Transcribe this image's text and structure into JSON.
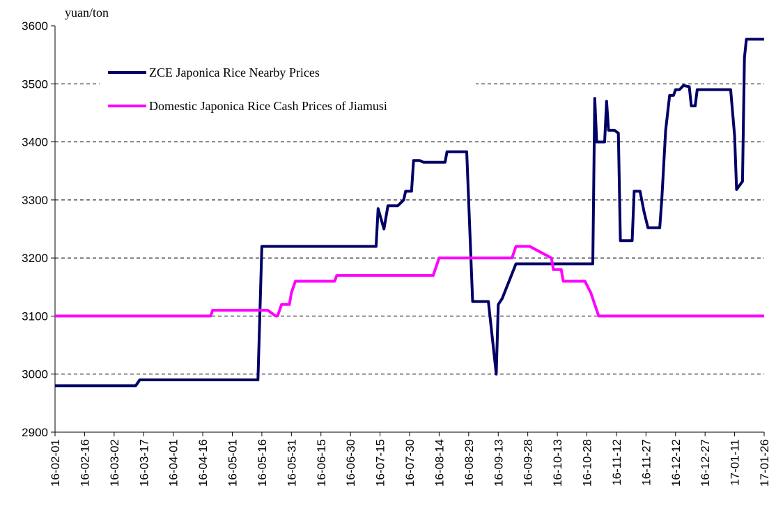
{
  "chart_data": {
    "type": "line",
    "y_label": "yuan/ton",
    "ylim": [
      2900,
      3600
    ],
    "yticks": [
      2900,
      3000,
      3100,
      3200,
      3300,
      3400,
      3500,
      3600
    ],
    "xlim": [
      "16-02-01",
      "17-01-26"
    ],
    "xticks": [
      "16-02-01",
      "16-02-16",
      "16-03-02",
      "16-03-17",
      "16-04-01",
      "16-04-16",
      "16-05-01",
      "16-05-16",
      "16-05-31",
      "16-06-15",
      "16-06-30",
      "16-07-15",
      "16-07-30",
      "16-08-14",
      "16-08-29",
      "16-09-13",
      "16-09-28",
      "16-10-13",
      "16-10-28",
      "16-11-12",
      "16-11-27",
      "16-12-12",
      "16-12-27",
      "17-01-11",
      "17-01-26"
    ],
    "grid": true,
    "legend": "upper left",
    "series": [
      {
        "name": "ZCE Japonica Rice Nearby Prices",
        "color": "#000066",
        "x": [
          "16-02-01",
          "16-03-13",
          "16-03-15",
          "16-05-14",
          "16-05-16",
          "16-07-13",
          "16-07-14",
          "16-07-17",
          "16-07-19",
          "16-07-24",
          "16-07-27",
          "16-07-28",
          "16-07-31",
          "16-08-01",
          "16-08-04",
          "16-08-06",
          "16-08-17",
          "16-08-18",
          "16-08-28",
          "16-08-31",
          "16-09-08",
          "16-09-12",
          "16-09-13",
          "16-09-15",
          "16-09-22",
          "16-10-31",
          "16-11-01",
          "16-11-02",
          "16-11-06",
          "16-11-07",
          "16-11-08",
          "16-11-11",
          "16-11-13",
          "16-11-14",
          "16-11-20",
          "16-11-21",
          "16-11-24",
          "16-11-26",
          "16-11-28",
          "16-12-04",
          "16-12-05",
          "16-12-07",
          "16-12-09",
          "16-12-11",
          "16-12-12",
          "16-12-14",
          "16-12-16",
          "16-12-19",
          "16-12-20",
          "16-12-22",
          "16-12-23",
          "17-01-09",
          "17-01-11",
          "17-01-12",
          "17-01-15",
          "17-01-16",
          "17-01-17",
          "17-01-26"
        ],
        "values": [
          2980,
          2980,
          2990,
          2990,
          3220,
          3220,
          3285,
          3250,
          3290,
          3290,
          3300,
          3315,
          3315,
          3368,
          3368,
          3365,
          3365,
          3383,
          3383,
          3125,
          3125,
          3000,
          3120,
          3130,
          3190,
          3190,
          3475,
          3400,
          3400,
          3470,
          3420,
          3420,
          3415,
          3230,
          3230,
          3315,
          3315,
          3280,
          3252,
          3252,
          3300,
          3420,
          3480,
          3480,
          3490,
          3490,
          3497,
          3495,
          3462,
          3462,
          3490,
          3490,
          3410,
          3318,
          3332,
          3545,
          3577,
          3577
        ]
      },
      {
        "name": "Domestic Japonica Rice Cash Prices of Jiamusi",
        "color": "#ff00ff",
        "x": [
          "16-02-01",
          "16-04-20",
          "16-04-21",
          "16-05-19",
          "16-05-23",
          "16-05-24",
          "16-05-26",
          "16-05-30",
          "16-05-31",
          "16-06-02",
          "16-06-22",
          "16-06-23",
          "16-08-11",
          "16-08-14",
          "16-09-20",
          "16-09-22",
          "16-09-29",
          "16-10-10",
          "16-10-11",
          "16-10-15",
          "16-10-16",
          "16-10-27",
          "16-10-30",
          "16-11-01",
          "16-11-03",
          "17-01-26"
        ],
        "values": [
          3100,
          3100,
          3110,
          3110,
          3100,
          3100,
          3120,
          3120,
          3140,
          3160,
          3160,
          3170,
          3170,
          3200,
          3200,
          3220,
          3220,
          3200,
          3180,
          3180,
          3160,
          3160,
          3140,
          3120,
          3100,
          3100
        ]
      }
    ]
  }
}
